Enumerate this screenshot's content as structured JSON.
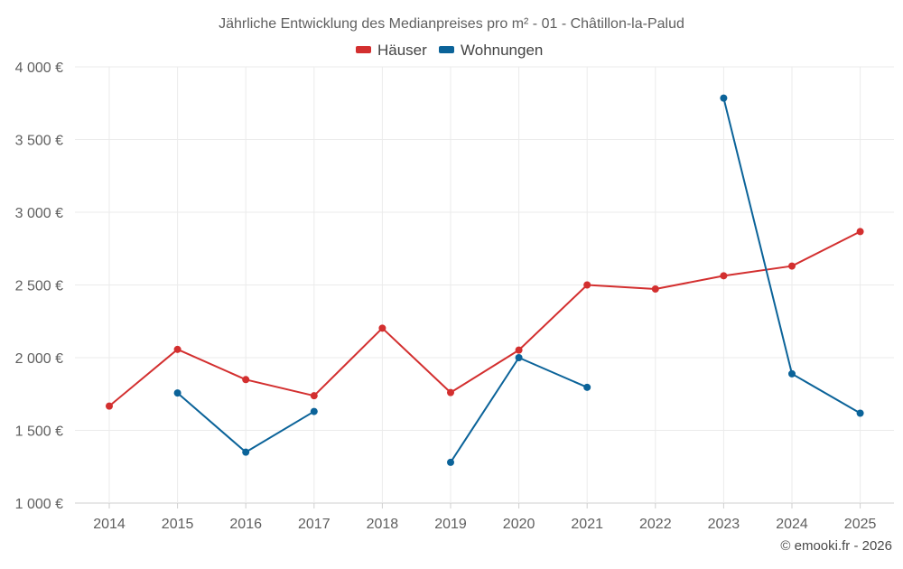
{
  "chart_data": {
    "type": "line",
    "title": "Jährliche Entwicklung des Medianpreises pro m² - 01 - Châtillon-la-Palud",
    "xlabel": "",
    "ylabel": "",
    "categories": [
      "2014",
      "2015",
      "2016",
      "2017",
      "2018",
      "2019",
      "2020",
      "2021",
      "2022",
      "2023",
      "2024",
      "2025"
    ],
    "ylim": [
      1000,
      4000
    ],
    "yticks": [
      1000,
      1500,
      2000,
      2500,
      3000,
      3500,
      4000
    ],
    "ytick_labels": [
      "1 000 €",
      "1 500 €",
      "2 000 €",
      "2 500 €",
      "3 000 €",
      "3 500 €",
      "4 000 €"
    ],
    "grid": true,
    "legend_position": "top-center",
    "series": [
      {
        "name": "Häuser",
        "color": "#d32f2f",
        "values": [
          1667,
          2057,
          1849,
          1738,
          2203,
          1760,
          2052,
          2500,
          2472,
          2563,
          2630,
          2867
        ]
      },
      {
        "name": "Wohnungen",
        "color": "#0b6399",
        "values": [
          null,
          1757,
          1350,
          1630,
          null,
          1280,
          2000,
          1796,
          null,
          3785,
          1889,
          1618
        ]
      }
    ]
  },
  "credit": "© emooki.fr - 2026"
}
